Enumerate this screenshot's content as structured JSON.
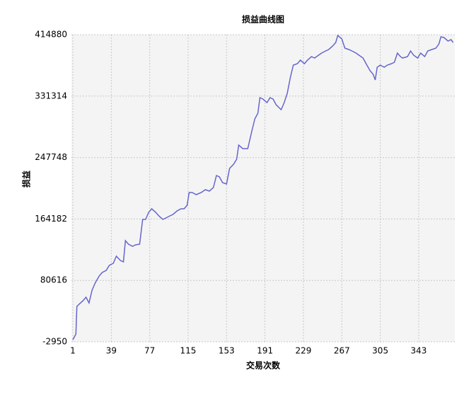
{
  "chart_data": {
    "type": "line",
    "title": "损益曲线图",
    "xlabel": "交易次数",
    "ylabel": "损益",
    "x": [
      1,
      4,
      5,
      7,
      11,
      14,
      17,
      20,
      23,
      27,
      30,
      34,
      37,
      41,
      44,
      48,
      51,
      53,
      56,
      60,
      63,
      67,
      70,
      73,
      76,
      79,
      83,
      86,
      90,
      93,
      97,
      100,
      104,
      108,
      111,
      114,
      116,
      119,
      123,
      128,
      132,
      136,
      140,
      143,
      146,
      149,
      153,
      156,
      160,
      163,
      165,
      169,
      174,
      178,
      181,
      184,
      186,
      189,
      193,
      196,
      199,
      202,
      207,
      210,
      213,
      216,
      219,
      223,
      226,
      230,
      233,
      237,
      240,
      244,
      247,
      251,
      254,
      258,
      261,
      263,
      267,
      270,
      274,
      277,
      281,
      284,
      288,
      291,
      295,
      298,
      300,
      302,
      305,
      309,
      312,
      316,
      319,
      322,
      325,
      327,
      332,
      335,
      338,
      342,
      345,
      349,
      352,
      356,
      360,
      363,
      365,
      368,
      372,
      375,
      377
    ],
    "series": [
      {
        "name": "损益",
        "color": "#6666cc",
        "values": [
          -62,
          7640,
          45185,
          48073,
          52887,
          57700,
          49998,
          67327,
          76954,
          86581,
          91395,
          94283,
          101022,
          103910,
          113537,
          107761,
          105836,
          134717,
          129904,
          127016,
          128941,
          129904,
          163598,
          163598,
          173225,
          178039,
          173225,
          168412,
          163598,
          165523,
          168412,
          170337,
          175150,
          178039,
          178039,
          182852,
          200181,
          200181,
          197293,
          200181,
          204031,
          202106,
          206919,
          223284,
          221358,
          213657,
          211732,
          232911,
          238687,
          245426,
          264680,
          259866,
          259866,
          283935,
          300301,
          308002,
          329181,
          327256,
          322442,
          329181,
          327256,
          319555,
          312816,
          322442,
          334958,
          356137,
          373465,
          375390,
          380204,
          375390,
          380204,
          385017,
          383092,
          386942,
          389830,
          392718,
          394644,
          399457,
          404271,
          413898,
          409084,
          396570,
          394644,
          392718,
          389830,
          386942,
          383092,
          375390,
          365763,
          360950,
          353248,
          370577,
          373465,
          370577,
          373465,
          375390,
          377316,
          389830,
          385017,
          383092,
          385017,
          392718,
          386942,
          383092,
          389830,
          385017,
          392718,
          394644,
          396570,
          402346,
          411973,
          411010,
          406197,
          408122,
          404271
        ]
      }
    ],
    "xlim": [
      -0.4,
      378.7
    ],
    "xticks": [
      1,
      39,
      77,
      115,
      153,
      191,
      229,
      267,
      305,
      343
    ],
    "ylim": [
      -2950,
      414880
    ],
    "yticks": [
      -2950,
      80616,
      164182,
      247748,
      331314,
      414880
    ],
    "grid": true
  }
}
